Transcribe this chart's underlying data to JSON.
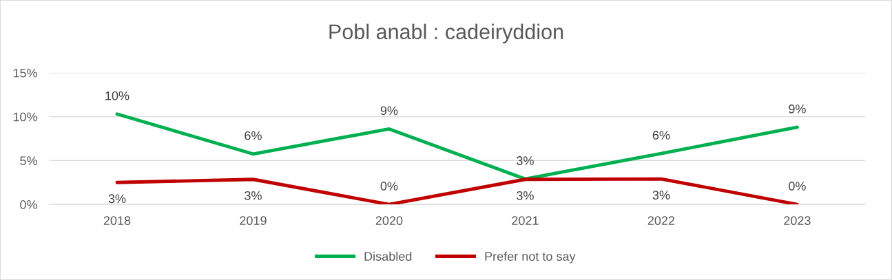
{
  "chart_data": {
    "type": "line",
    "title": "Pobl anabl : cadeiryddion",
    "categories": [
      "2018",
      "2019",
      "2020",
      "2021",
      "2022",
      "2023"
    ],
    "series": [
      {
        "name": "Disabled",
        "color": "#00b050",
        "values": [
          10.3,
          5.75,
          8.6,
          2.9,
          5.8,
          8.8
        ],
        "value_labels": [
          "10%",
          "6%",
          "9%",
          "3%",
          "6%",
          "9%"
        ]
      },
      {
        "name": "Prefer not to say",
        "color": "#c00000",
        "values": [
          2.5,
          2.85,
          0,
          2.85,
          2.9,
          0
        ],
        "value_labels": [
          "3%",
          "3%",
          "0%",
          "3%",
          "3%",
          "0%"
        ]
      }
    ],
    "ylim": [
      0,
      15
    ],
    "yticks": [
      {
        "value": 0,
        "label": "0%"
      },
      {
        "value": 5,
        "label": "5%"
      },
      {
        "value": 10,
        "label": "10%"
      },
      {
        "value": 15,
        "label": "15%"
      }
    ],
    "grid": "y",
    "legend": "bottom",
    "marker": "none",
    "line_style": "solid"
  }
}
